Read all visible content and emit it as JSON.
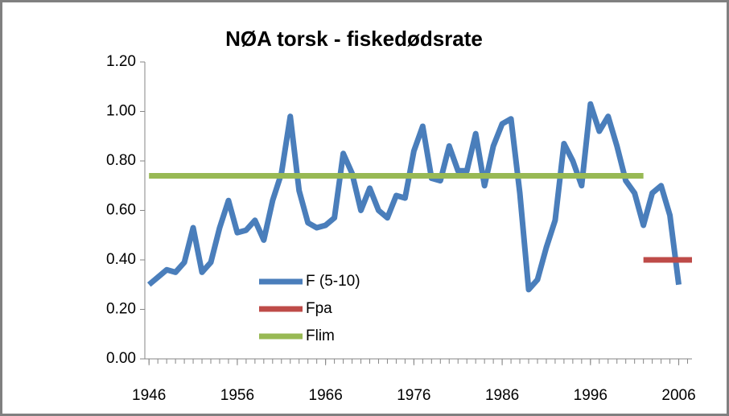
{
  "chart_data": {
    "type": "line",
    "title": "NØA torsk - fiskedødsrate",
    "xlim": [
      1945.8,
      2007.5
    ],
    "xticks": [
      1946,
      1956,
      1966,
      1976,
      1986,
      1996,
      2006
    ],
    "xminor": 1,
    "ylim": [
      0,
      1.2
    ],
    "yticks": [
      {
        "value": 0,
        "label": "0.00"
      },
      {
        "value": 0.2,
        "label": "0.20"
      },
      {
        "value": 0.4,
        "label": "0.40"
      },
      {
        "value": 0.6,
        "label": "0.60"
      },
      {
        "value": 0.8,
        "label": "0.80"
      },
      {
        "value": 1.0,
        "label": "1.00"
      },
      {
        "value": 1.2,
        "label": "1.20"
      }
    ],
    "legend": "lower-left",
    "series": [
      {
        "name": "F (5-10)",
        "color": "#4a7ebb",
        "x": [
          1946,
          1947,
          1948,
          1949,
          1950,
          1951,
          1952,
          1953,
          1954,
          1955,
          1956,
          1957,
          1958,
          1959,
          1960,
          1961,
          1962,
          1963,
          1964,
          1965,
          1966,
          1967,
          1968,
          1969,
          1970,
          1971,
          1972,
          1973,
          1974,
          1975,
          1976,
          1977,
          1978,
          1979,
          1980,
          1981,
          1982,
          1983,
          1984,
          1985,
          1986,
          1987,
          1988,
          1989,
          1990,
          1991,
          1992,
          1993,
          1994,
          1995,
          1996,
          1997,
          1998,
          1999,
          2000,
          2001,
          2002,
          2003,
          2004,
          2005,
          2006
        ],
        "values": [
          0.3,
          0.33,
          0.36,
          0.35,
          0.39,
          0.53,
          0.35,
          0.39,
          0.53,
          0.64,
          0.51,
          0.52,
          0.56,
          0.48,
          0.64,
          0.75,
          0.98,
          0.68,
          0.55,
          0.53,
          0.54,
          0.57,
          0.83,
          0.75,
          0.6,
          0.69,
          0.6,
          0.57,
          0.66,
          0.65,
          0.84,
          0.94,
          0.73,
          0.72,
          0.86,
          0.76,
          0.76,
          0.91,
          0.7,
          0.86,
          0.95,
          0.97,
          0.67,
          0.28,
          0.32,
          0.45,
          0.56,
          0.87,
          0.8,
          0.7,
          1.03,
          0.92,
          0.98,
          0.86,
          0.72,
          0.67,
          0.54,
          0.67,
          0.7,
          0.58,
          0.3
        ]
      },
      {
        "name": "Fpa",
        "color": "#be4b48",
        "x": [
          2002,
          2007.5
        ],
        "values": [
          0.4,
          0.4
        ]
      },
      {
        "name": "Flim",
        "color": "#98b954",
        "x": [
          1946,
          2002
        ],
        "values": [
          0.74,
          0.74
        ]
      }
    ]
  }
}
